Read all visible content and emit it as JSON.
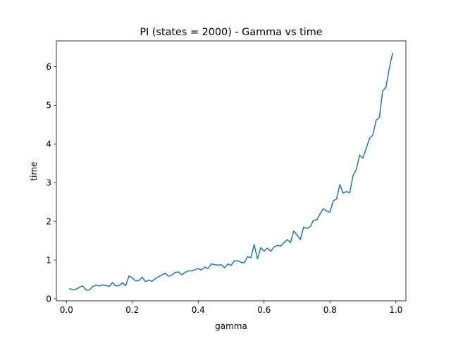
{
  "chart_data": {
    "type": "line",
    "title": "PI (states = 2000) - Gamma vs time",
    "xlabel": "gamma",
    "ylabel": "time",
    "xlim": [
      -0.0305,
      1.0305
    ],
    "ylim": [
      -0.054,
      6.664
    ],
    "x_ticks": [
      0.0,
      0.2,
      0.4,
      0.6,
      0.8,
      1.0
    ],
    "x_tick_labels": [
      "0.0",
      "0.2",
      "0.4",
      "0.6",
      "0.8",
      "1.0"
    ],
    "y_ticks": [
      0,
      1,
      2,
      3,
      4,
      5,
      6
    ],
    "y_tick_labels": [
      "0",
      "1",
      "2",
      "3",
      "4",
      "5",
      "6"
    ],
    "grid": false,
    "line_color": "#1f77b4",
    "series": [
      {
        "x": [
          0.01,
          0.02,
          0.03,
          0.04,
          0.05,
          0.06,
          0.07,
          0.08,
          0.09,
          0.1,
          0.11,
          0.12,
          0.13,
          0.14,
          0.15,
          0.16,
          0.17,
          0.18,
          0.19,
          0.2,
          0.21,
          0.22,
          0.23,
          0.24,
          0.25,
          0.26,
          0.27,
          0.28,
          0.29,
          0.3,
          0.31,
          0.32,
          0.33,
          0.34,
          0.35,
          0.36,
          0.37,
          0.38,
          0.39,
          0.4,
          0.41,
          0.42,
          0.43,
          0.44,
          0.45,
          0.46,
          0.47,
          0.48,
          0.49,
          0.5,
          0.51,
          0.52,
          0.53,
          0.54,
          0.55,
          0.56,
          0.57,
          0.58,
          0.59,
          0.6,
          0.61,
          0.62,
          0.63,
          0.64,
          0.65,
          0.66,
          0.67,
          0.68,
          0.69,
          0.7,
          0.71,
          0.72,
          0.73,
          0.74,
          0.75,
          0.76,
          0.77,
          0.78,
          0.79,
          0.8,
          0.81,
          0.82,
          0.83,
          0.84,
          0.85,
          0.86,
          0.87,
          0.88,
          0.89,
          0.9,
          0.91,
          0.92,
          0.93,
          0.94,
          0.95,
          0.96,
          0.97,
          0.98,
          0.99
        ],
        "y": [
          0.26,
          0.23,
          0.25,
          0.3,
          0.33,
          0.22,
          0.23,
          0.32,
          0.35,
          0.33,
          0.36,
          0.34,
          0.32,
          0.42,
          0.33,
          0.34,
          0.41,
          0.34,
          0.59,
          0.54,
          0.46,
          0.47,
          0.56,
          0.44,
          0.48,
          0.45,
          0.52,
          0.57,
          0.62,
          0.66,
          0.58,
          0.61,
          0.68,
          0.69,
          0.62,
          0.68,
          0.72,
          0.72,
          0.75,
          0.78,
          0.74,
          0.82,
          0.78,
          0.9,
          0.88,
          0.87,
          0.88,
          0.8,
          0.9,
          0.86,
          0.98,
          0.98,
          0.94,
          0.93,
          1.09,
          1.06,
          1.4,
          1.03,
          1.32,
          1.23,
          1.31,
          1.23,
          1.33,
          1.38,
          1.36,
          1.44,
          1.53,
          1.45,
          1.75,
          1.65,
          1.53,
          1.85,
          1.82,
          1.86,
          2.03,
          2.04,
          2.19,
          2.33,
          2.26,
          2.24,
          2.53,
          2.58,
          2.95,
          2.73,
          2.77,
          2.74,
          3.18,
          3.34,
          3.71,
          3.63,
          3.89,
          4.14,
          4.23,
          4.61,
          4.69,
          5.37,
          5.47,
          5.95,
          6.34
        ]
      }
    ]
  }
}
